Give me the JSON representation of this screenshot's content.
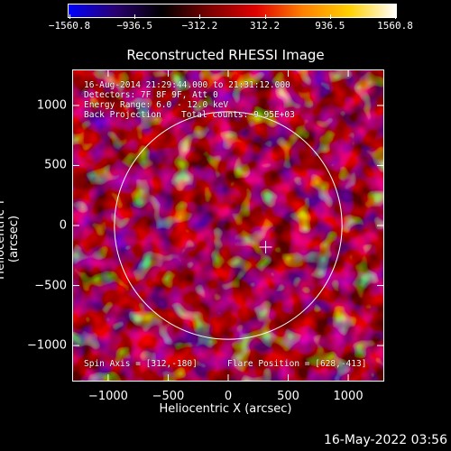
{
  "colorbar": {
    "tick_labels": [
      "−1560.8",
      "−936.5",
      "−312.2",
      "312.2",
      "936.5",
      "1560.8"
    ],
    "range": [
      -1560.8,
      1560.8
    ],
    "colors": [
      "#0000ff",
      "#2a0070",
      "#000000",
      "#7a0000",
      "#e00000",
      "#ff8000",
      "#ffd000",
      "#ffffff"
    ]
  },
  "title": "Reconstructed RHESSI Image",
  "info": {
    "line1": "16-Aug-2014 21:29:44.000 to 21:31:12.000",
    "line2": "Detectors: 7F 8F 9F, Att 0",
    "line3": "Energy Range: 6.0 - 12.0 keV",
    "line4a": "Back Projection",
    "line4b": "Total counts: 9.95E+03",
    "spin_axis": "Spin Axis = [312,-180]",
    "flare_position": "Flare Position = [628,-413]"
  },
  "map": {
    "x_range": [
      -1300,
      1300
    ],
    "y_range": [
      -1300,
      1300
    ],
    "xlabel": "Heliocentric X (arcsec)",
    "ylabel": "Heliocentric Y (arcsec)",
    "x_ticks": [
      -1000,
      -500,
      0,
      500,
      1000
    ],
    "y_ticks": [
      1000,
      500,
      0,
      -500,
      -1000
    ],
    "x_tick_labels": [
      "−1000",
      "−500",
      "0",
      "500",
      "1000"
    ],
    "y_tick_labels": [
      "1000",
      "500",
      "0",
      "−500",
      "−1000"
    ],
    "solar_radius_arcsec": 948,
    "spin_axis_marker": [
      312,
      -180
    ]
  },
  "footer_date": "16-May-2022 03:56"
}
